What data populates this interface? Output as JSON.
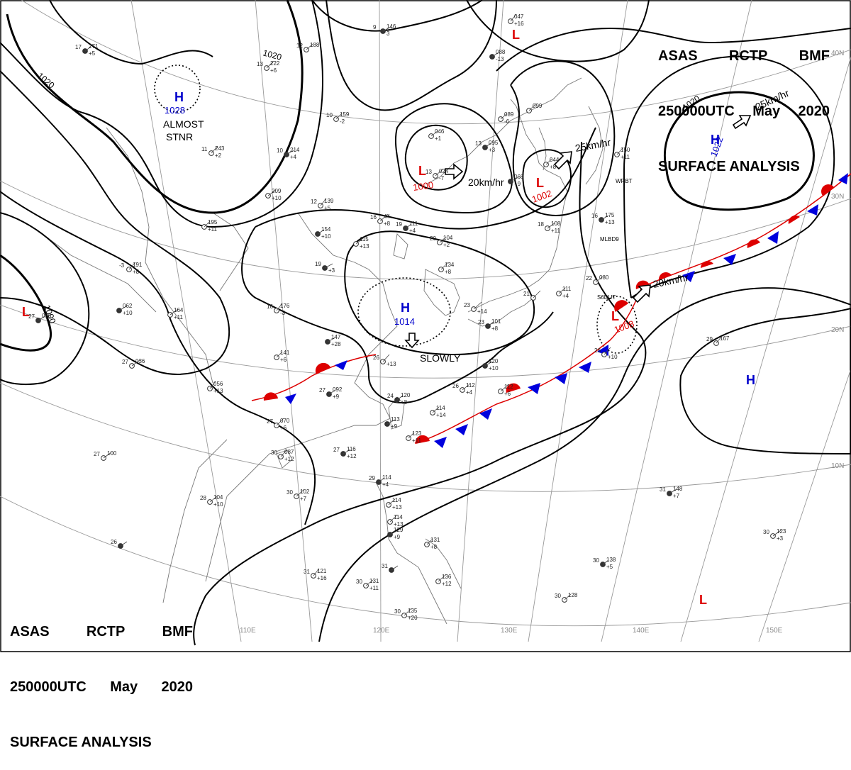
{
  "header": {
    "agency": "ASAS",
    "station": "RCTP",
    "office": "BMF",
    "time": "250000UTC",
    "month": "May",
    "year": "2020",
    "title": "SURFACE ANALYSIS"
  },
  "latitude_labels": [
    "40N",
    "30N",
    "20N",
    "10N"
  ],
  "longitude_labels": [
    "110E",
    "120E",
    "130E",
    "140E",
    "150E"
  ],
  "isobar_labels": [
    "1020",
    "1020",
    "1000",
    "1020"
  ],
  "pressure_centers": [
    {
      "type": "H",
      "value": "1028",
      "color": "#0000cc"
    },
    {
      "type": "H",
      "value": "1014",
      "color": "#0000cc"
    },
    {
      "type": "H",
      "value": "1022",
      "color": "#0000cc"
    },
    {
      "type": "H",
      "value": "",
      "color": "#0000cc"
    },
    {
      "type": "L",
      "value": "1000",
      "color": "#dd0000"
    },
    {
      "type": "L",
      "value": "1002",
      "color": "#dd0000"
    },
    {
      "type": "L",
      "value": "1008",
      "color": "#dd0000"
    },
    {
      "type": "L",
      "value": "",
      "color": "#dd0000"
    },
    {
      "type": "L",
      "value": "",
      "color": "#dd0000"
    }
  ],
  "movement_labels": [
    "ALMOST",
    "STNR",
    "20km/hr",
    "25km/hr",
    "25km/hr",
    "20km/hr",
    "SLOWLY"
  ],
  "station_plots": [
    {
      "t": "17",
      "p": "271",
      "d": "+5"
    },
    {
      "t": "12",
      "p": "188",
      "d": ""
    },
    {
      "t": "13",
      "p": "222",
      "d": "+6"
    },
    {
      "t": "9",
      "p": "146",
      "d": "3"
    },
    {
      "t": "10",
      "p": "159",
      "d": "-2"
    },
    {
      "t": "11",
      "p": "243",
      "d": "+2"
    },
    {
      "t": "10",
      "p": "214",
      "d": "+4"
    },
    {
      "t": "",
      "p": "209",
      "d": "+10"
    },
    {
      "t": "12",
      "p": "139",
      "d": "+5"
    },
    {
      "t": "",
      "p": "154",
      "d": "+10"
    },
    {
      "t": "",
      "p": "115",
      "d": "+13"
    },
    {
      "t": "16",
      "p": "44",
      "d": "+8"
    },
    {
      "t": "19",
      "p": "111",
      "d": "+4"
    },
    {
      "t": "20",
      "p": "104",
      "d": "+2"
    },
    {
      "t": "",
      "p": "134",
      "d": "+8"
    },
    {
      "t": "19",
      "p": "",
      "d": "+3"
    },
    {
      "t": "",
      "p": "195",
      "d": "+11"
    },
    {
      "t": "-3",
      "p": "191",
      "d": "+8"
    },
    {
      "t": "",
      "p": "062",
      "d": "+10"
    },
    {
      "t": "",
      "p": "164",
      "d": "+11"
    },
    {
      "t": "16",
      "p": "176",
      "d": "-3"
    },
    {
      "t": "27",
      "p": "096",
      "d": ""
    },
    {
      "t": "",
      "p": "046",
      "d": "+1"
    },
    {
      "t": "13",
      "p": "024",
      "d": "-7"
    },
    {
      "t": "13",
      "p": "095",
      "d": "+3"
    },
    {
      "t": "",
      "p": "089",
      "d": "-6"
    },
    {
      "t": "",
      "p": "099",
      "d": ""
    },
    {
      "t": "",
      "p": "068",
      "d": "+9"
    },
    {
      "t": "",
      "p": "044",
      "d": "+8"
    },
    {
      "t": "",
      "p": "150",
      "d": "+11"
    },
    {
      "t": "16",
      "p": "175",
      "d": "+13"
    },
    {
      "t": "18",
      "p": "108",
      "d": "+11"
    },
    {
      "t": "",
      "p": "047",
      "d": "+16"
    },
    {
      "t": "",
      "p": "088",
      "d": "-13"
    },
    {
      "t": "22",
      "p": "080",
      "d": ""
    },
    {
      "t": "23",
      "p": "",
      "d": "+14"
    },
    {
      "t": "23",
      "p": "101",
      "d": "+8"
    },
    {
      "t": "",
      "p": "111",
      "d": "+4"
    },
    {
      "t": "21",
      "p": "",
      "d": ""
    },
    {
      "t": "",
      "p": "147",
      "d": "+28"
    },
    {
      "t": "",
      "p": "141",
      "d": "+6"
    },
    {
      "t": "26",
      "p": "",
      "d": "+13"
    },
    {
      "t": "",
      "p": "120",
      "d": "+10"
    },
    {
      "t": "27",
      "p": "036",
      "d": ""
    },
    {
      "t": "",
      "p": "056",
      "d": "+13"
    },
    {
      "t": "27",
      "p": "092",
      "d": "+9"
    },
    {
      "t": "26",
      "p": "112",
      "d": "+4"
    },
    {
      "t": "",
      "p": "112",
      "d": "+6"
    },
    {
      "t": "24",
      "p": "120",
      "d": "+8"
    },
    {
      "t": "",
      "p": "114",
      "d": "+14"
    },
    {
      "t": "27",
      "p": "070",
      "d": "+6"
    },
    {
      "t": "",
      "p": "113",
      "d": "+9"
    },
    {
      "t": "",
      "p": "123",
      "d": "+11"
    },
    {
      "t": "30",
      "p": "087",
      "d": "+12"
    },
    {
      "t": "27",
      "p": "116",
      "d": "+12"
    },
    {
      "t": "27",
      "p": "100",
      "d": ""
    },
    {
      "t": "29",
      "p": "167",
      "d": ""
    },
    {
      "t": "26",
      "p": "",
      "d": ""
    },
    {
      "t": "28",
      "p": "104",
      "d": "+10"
    },
    {
      "t": "30",
      "p": "102",
      "d": "+7"
    },
    {
      "t": "29",
      "p": "114",
      "d": "+4"
    },
    {
      "t": "",
      "p": "114",
      "d": "+13"
    },
    {
      "t": "",
      "p": "114",
      "d": "+13"
    },
    {
      "t": "",
      "p": "129",
      "d": "+9"
    },
    {
      "t": "",
      "p": "131",
      "d": "+8"
    },
    {
      "t": "26",
      "p": "",
      "d": "+10"
    },
    {
      "t": "31",
      "p": "148",
      "d": "+7"
    },
    {
      "t": "30",
      "p": "123",
      "d": "+3"
    },
    {
      "t": "31",
      "p": "121",
      "d": "+16"
    },
    {
      "t": "31",
      "p": "",
      "d": ""
    },
    {
      "t": "30",
      "p": "131",
      "d": "+11"
    },
    {
      "t": "",
      "p": "136",
      "d": "+12"
    },
    {
      "t": "30",
      "p": "138",
      "d": "+5"
    },
    {
      "t": "30",
      "p": "128",
      "d": ""
    },
    {
      "t": "30",
      "p": "135",
      "d": "+20"
    }
  ],
  "station_ids": [
    "MLBD9",
    "S6DUT",
    "WRBT"
  ],
  "colors": {
    "isobar": "#000000",
    "high": "#0000cc",
    "low": "#dd0000",
    "warm_front": "#dd0000",
    "cold_front": "#0000dd",
    "grid": "#999999",
    "coast": "#777777"
  }
}
